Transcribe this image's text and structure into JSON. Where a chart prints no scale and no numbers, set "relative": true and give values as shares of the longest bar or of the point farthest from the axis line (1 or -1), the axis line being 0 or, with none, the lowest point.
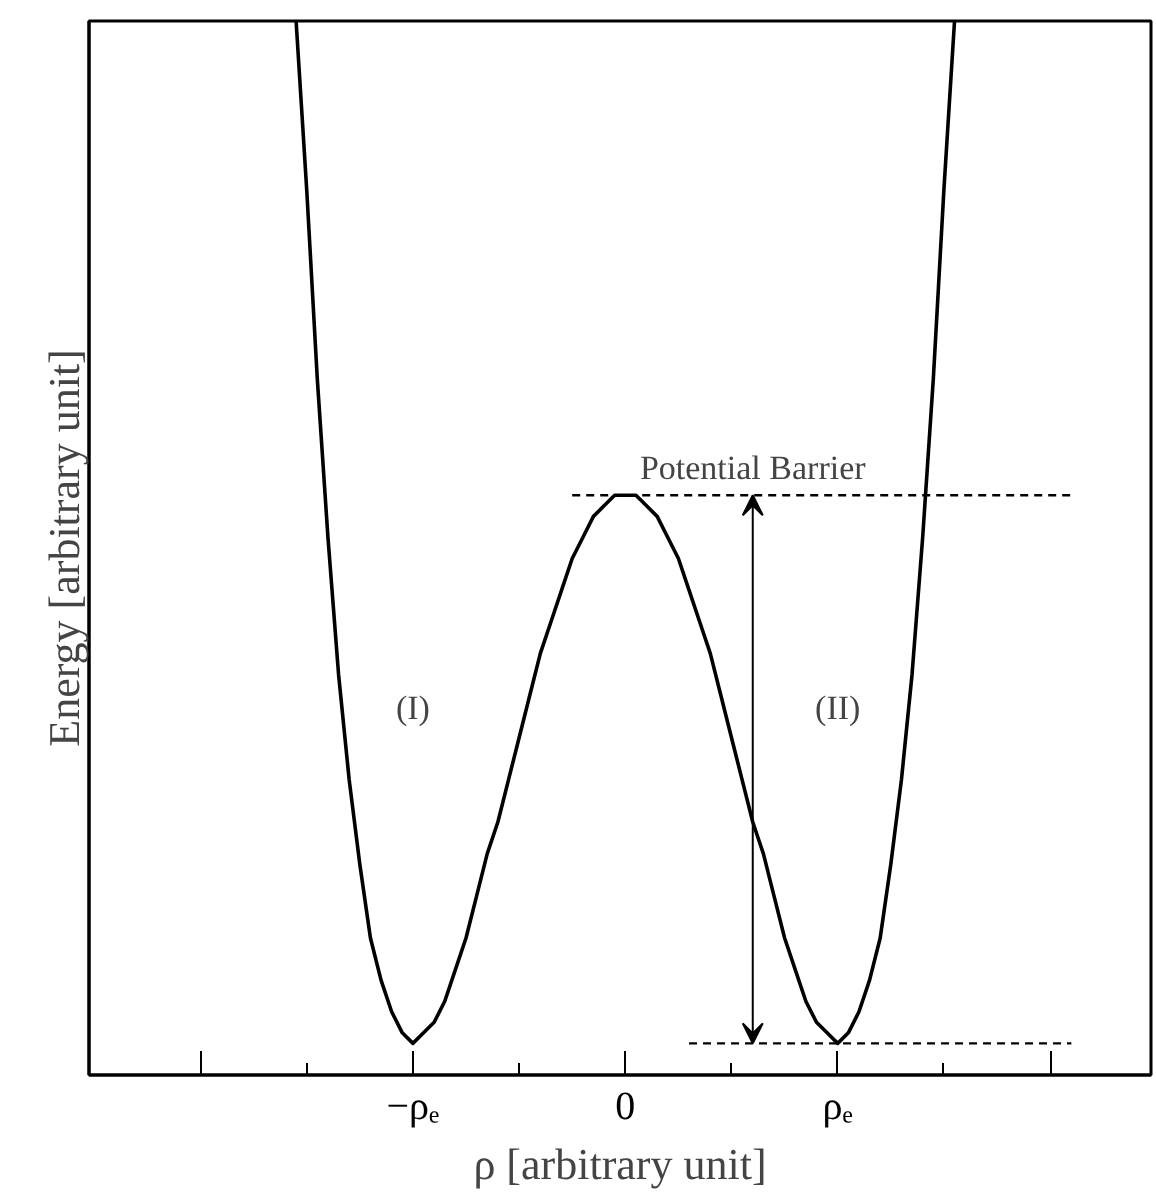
{
  "chart_data": {
    "type": "line",
    "relative": true,
    "xlabel": "ρ [arbitrary unit]",
    "ylabel": "Energy [arbitrary unit]",
    "categories": [
      null,
      null,
      null,
      null,
      null,
      null,
      null,
      null,
      null,
      null,
      null,
      null,
      null,
      null,
      null,
      null,
      null,
      null,
      null,
      null,
      null,
      null,
      null,
      null,
      null,
      null,
      null,
      null,
      null,
      null,
      "−ρₑ",
      null,
      null,
      null,
      null,
      null,
      null,
      null,
      null,
      null,
      null,
      null,
      null,
      null,
      null,
      null,
      null,
      null,
      null,
      null,
      "0",
      null,
      null,
      null,
      null,
      null,
      null,
      null,
      null,
      null,
      null,
      null,
      null,
      null,
      null,
      null,
      null,
      null,
      null,
      null,
      "ρₑ",
      null,
      null,
      null,
      null,
      null,
      null,
      null,
      null,
      null,
      null,
      null,
      null,
      null,
      null,
      null,
      null,
      null,
      null,
      null,
      null,
      null,
      null,
      null,
      null,
      null,
      null,
      null,
      null,
      null
    ],
    "tick_labels": "x",
    "grid": false,
    "marker": "none",
    "series": [
      {
        "color": "#000000",
        "line_style": "solid",
        "values": [
          null,
          null,
          null,
          null,
          null,
          null,
          null,
          null,
          null,
          null,
          null,
          null,
          null,
          null,
          null,
          null,
          null,
          null,
          null,
          1.0,
          0.84,
          0.66,
          0.51,
          0.38,
          0.28,
          0.2,
          0.13,
          0.09,
          0.06,
          0.04,
          0.03,
          0.04,
          0.05,
          0.07,
          0.1,
          0.13,
          0.17,
          0.21,
          0.24,
          0.28,
          0.32,
          0.36,
          0.4,
          0.43,
          0.46,
          0.49,
          0.51,
          0.53,
          0.54,
          0.55,
          0.55,
          0.55,
          0.54,
          0.53,
          0.51,
          0.49,
          0.46,
          0.43,
          0.4,
          0.36,
          0.32,
          0.28,
          0.24,
          0.21,
          0.17,
          0.13,
          0.1,
          0.07,
          0.05,
          0.04,
          0.03,
          0.04,
          0.06,
          0.09,
          0.13,
          0.2,
          0.28,
          0.38,
          0.51,
          0.66,
          0.84,
          1.0,
          null,
          null,
          null,
          null,
          null,
          null,
          null,
          null,
          null,
          null,
          null,
          null,
          null,
          null,
          null,
          null,
          null,
          null
        ]
      },
      {
        "color": "#000000",
        "line_style": "dashed",
        "values": [
          null,
          null,
          null,
          null,
          null,
          null,
          null,
          null,
          null,
          null,
          null,
          null,
          null,
          null,
          null,
          null,
          null,
          null,
          null,
          null,
          null,
          null,
          null,
          null,
          null,
          null,
          null,
          null,
          null,
          null,
          null,
          null,
          null,
          null,
          null,
          null,
          null,
          null,
          null,
          null,
          null,
          null,
          null,
          null,
          null,
          0.55,
          0.55,
          0.55,
          0.55,
          0.55,
          0.55,
          0.55,
          0.55,
          0.55,
          0.55,
          0.55,
          0.55,
          0.55,
          0.55,
          0.55,
          0.55,
          0.55,
          0.55,
          0.55,
          0.55,
          0.55,
          0.55,
          0.55,
          0.55,
          0.55,
          0.55,
          0.55,
          0.55,
          0.55,
          0.55,
          0.55,
          0.55,
          0.55,
          0.55,
          0.55,
          0.55,
          0.55,
          0.55,
          0.55,
          0.55,
          0.55,
          0.55,
          0.55,
          0.55,
          0.55,
          0.55,
          0.55,
          0.55,
          null,
          null,
          null,
          null,
          null,
          null,
          null
        ]
      },
      {
        "color": "#000000",
        "line_style": "dashed",
        "values": [
          null,
          null,
          null,
          null,
          null,
          null,
          null,
          null,
          null,
          null,
          null,
          null,
          null,
          null,
          null,
          null,
          null,
          null,
          null,
          null,
          null,
          null,
          null,
          null,
          null,
          null,
          null,
          null,
          null,
          null,
          null,
          null,
          null,
          null,
          null,
          null,
          null,
          null,
          null,
          null,
          null,
          null,
          null,
          null,
          null,
          null,
          null,
          null,
          null,
          null,
          null,
          null,
          null,
          null,
          null,
          null,
          0.03,
          0.03,
          0.03,
          0.03,
          0.03,
          0.03,
          0.03,
          0.03,
          0.03,
          0.03,
          0.03,
          0.03,
          0.03,
          0.03,
          0.03,
          0.03,
          0.03,
          0.03,
          0.03,
          0.03,
          0.03,
          0.03,
          0.03,
          0.03,
          0.03,
          0.03,
          0.03,
          0.03,
          0.03,
          0.03,
          0.03,
          0.03,
          0.03,
          0.03,
          0.03,
          0.03,
          0.03,
          null,
          null,
          null,
          null,
          null,
          null,
          null
        ]
      }
    ],
    "annotations": [
      "Potential Barrier",
      "(I)",
      "(II)"
    ]
  }
}
